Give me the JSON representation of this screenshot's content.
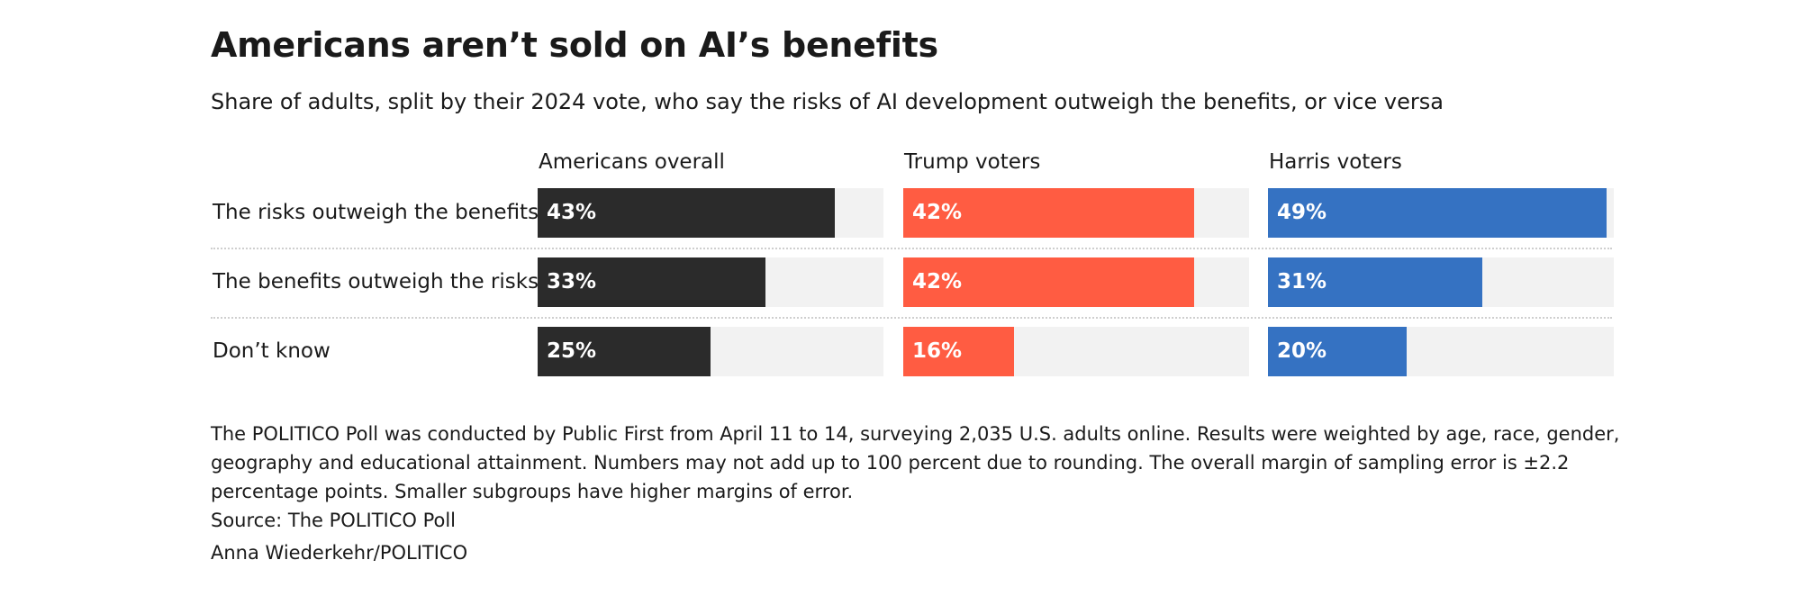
{
  "chart_data": {
    "type": "bar",
    "title": "Americans aren’t sold on AI’s benefits",
    "subtitle": "Share of adults, split by their 2024 vote, who say the risks of AI development outweigh the benefits, or vice versa",
    "categories": [
      "The risks outweigh the benefits",
      "The benefits outweigh the risks",
      "Don’t know"
    ],
    "series": [
      {
        "name": "Americans overall",
        "color": "#2b2b2b",
        "values": [
          43,
          33,
          25
        ],
        "labels": [
          "43%",
          "33%",
          "25%"
        ]
      },
      {
        "name": "Trump voters",
        "color": "#ff5c42",
        "values": [
          42,
          42,
          16
        ],
        "labels": [
          "42%",
          "42%",
          "16%"
        ]
      },
      {
        "name": "Harris voters",
        "color": "#3572c2",
        "values": [
          49,
          31,
          20
        ],
        "labels": [
          "49%",
          "31%",
          "20%"
        ]
      }
    ],
    "xlim": [
      0,
      50
    ],
    "track_color": "#f2f2f2",
    "grid": false,
    "legend": "none"
  },
  "notes": {
    "text": "The POLITICO Poll was conducted by Public First from April 11 to 14, surveying 2,035 U.S. adults online. Results were weighted by age, race, gender, geography and educational attainment. Numbers may not add up to 100 percent due to rounding. The overall margin of sampling error is ±2.2 percentage points. Smaller subgroups have higher margins of error.",
    "source": "Source: The POLITICO Poll",
    "credit": "Anna Wiederkehr/POLITICO"
  }
}
